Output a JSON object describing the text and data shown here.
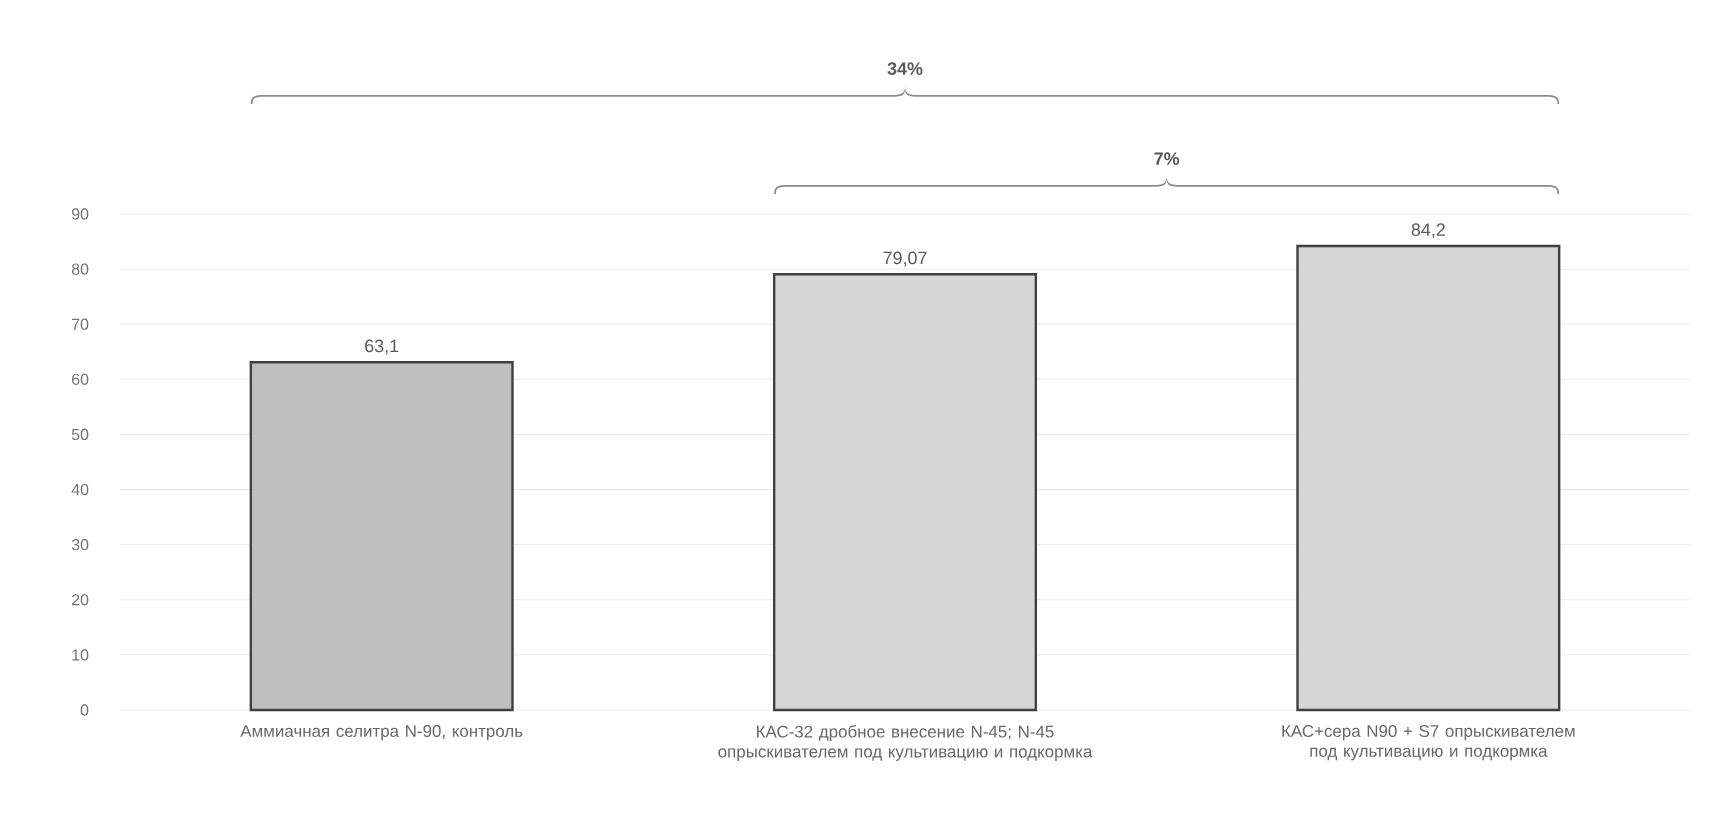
{
  "chart_data": {
    "type": "bar",
    "categories": [
      "Аммиачная селитра N-90, контроль",
      "КАС-32 дробное внесение N-45; N-45 опрыскивателем под культивацию и подкормка",
      "КАС+сера N90 + S7 опрыскивателем под культивацию и подкормка"
    ],
    "values": [
      63.1,
      79.07,
      84.2
    ],
    "value_labels": [
      "63,1",
      "79,07",
      "84,2"
    ],
    "colors": [
      "#bfbfbf",
      "#d6d6d6",
      "#d6d6d6"
    ],
    "ylim": [
      0,
      90
    ],
    "yticks": [
      0,
      10,
      20,
      30,
      40,
      50,
      60,
      70,
      80,
      90
    ],
    "grid": "y",
    "annotations": [
      "34%",
      "7%"
    ]
  }
}
